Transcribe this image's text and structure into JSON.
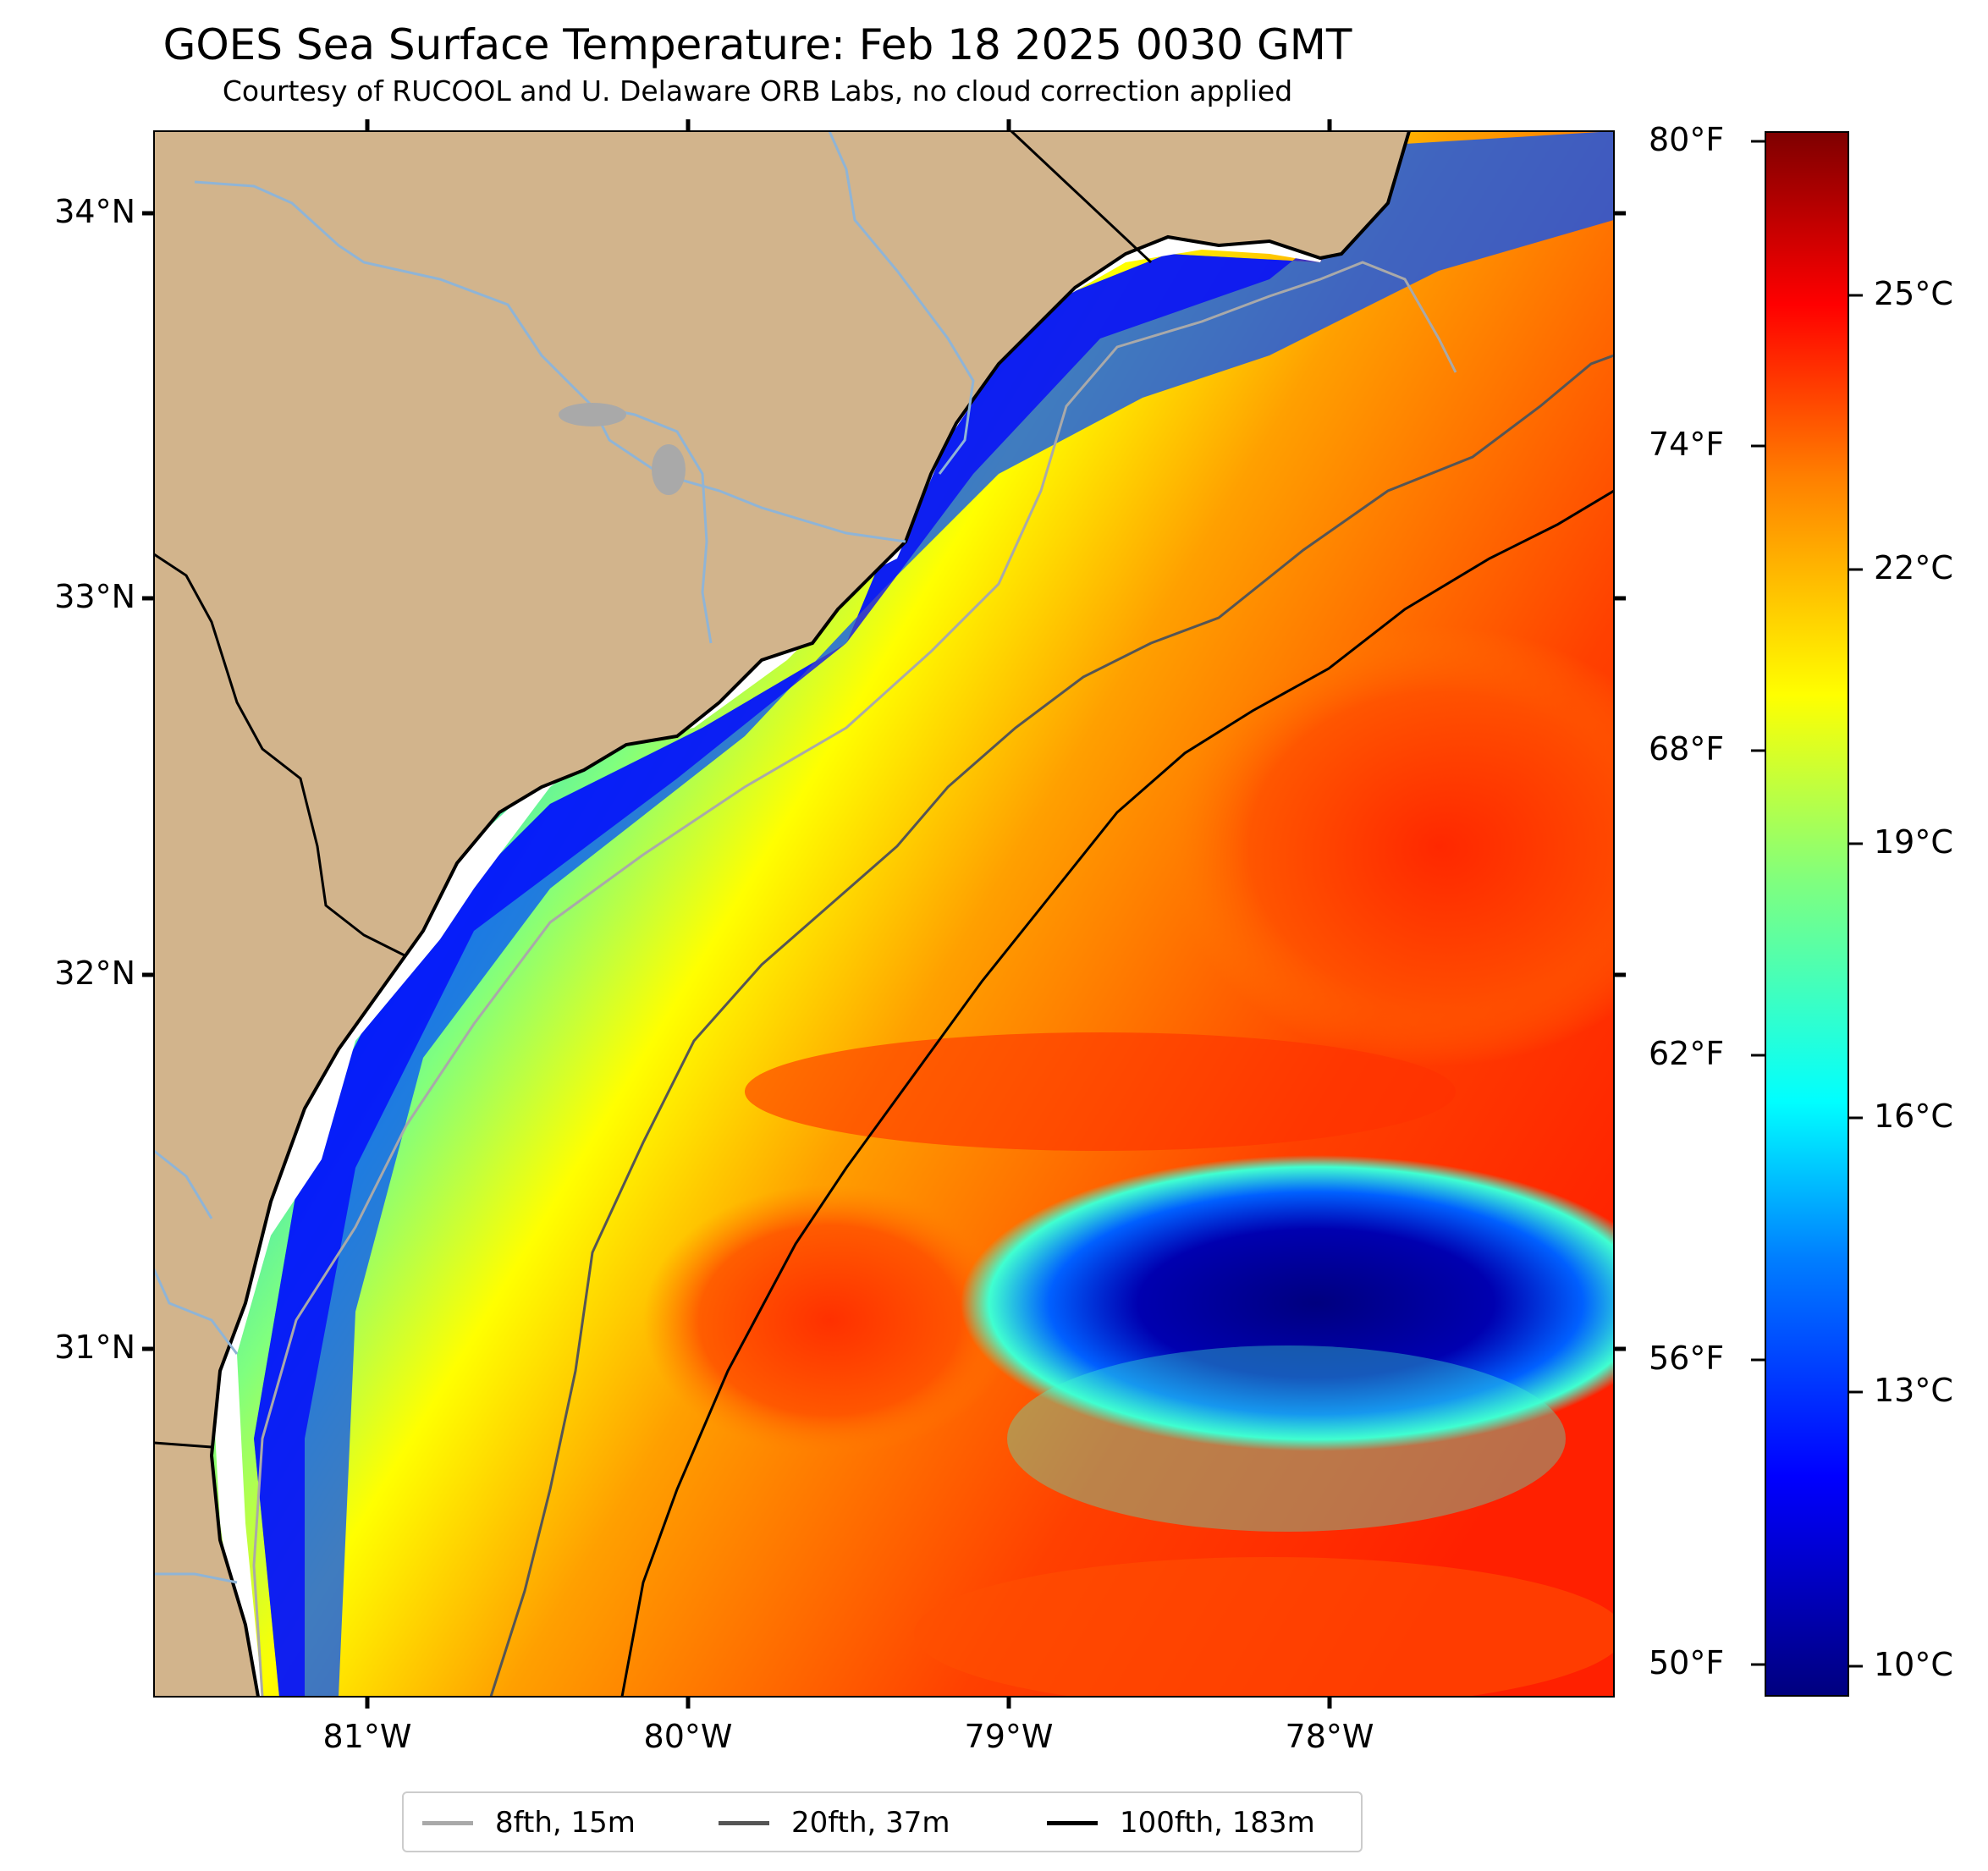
{
  "title": "GOES Sea Surface Temperature: Feb 18 2025 0030 GMT",
  "subtitle": "Courtesy of RUCOOL and U. Delaware ORB Labs, no cloud correction applied",
  "lat_labels": [
    "34°N",
    "33°N",
    "32°N",
    "31°N"
  ],
  "lon_labels": [
    "81°W",
    "80°W",
    "79°W",
    "78°W"
  ],
  "colorbar": {
    "fahrenheit_labels": [
      "80°F",
      "74°F",
      "68°F",
      "62°F",
      "56°F",
      "50°F"
    ],
    "celsius_labels": [
      "25°C",
      "22°C",
      "19°C",
      "16°C",
      "13°C",
      "10°C"
    ],
    "colormap": "jet",
    "range_c": [
      9.5,
      27.0
    ],
    "colors": [
      "#00007f",
      "#0000ff",
      "#007fff",
      "#00ffff",
      "#7fff7f",
      "#ffff00",
      "#ff7f00",
      "#ff0000",
      "#7f0000"
    ]
  },
  "legend": {
    "items": [
      {
        "label": "8fth, 15m",
        "color": "#a9a9a9"
      },
      {
        "label": "20fth, 37m",
        "color": "#555555"
      },
      {
        "label": "100fth, 183m",
        "color": "#000000"
      }
    ]
  },
  "colors": {
    "land": "#d2b48c",
    "rivers": "#8fb4d6",
    "lakes": "#a9a9a9",
    "coastline": "#000000",
    "nodata": "#ffffff"
  }
}
